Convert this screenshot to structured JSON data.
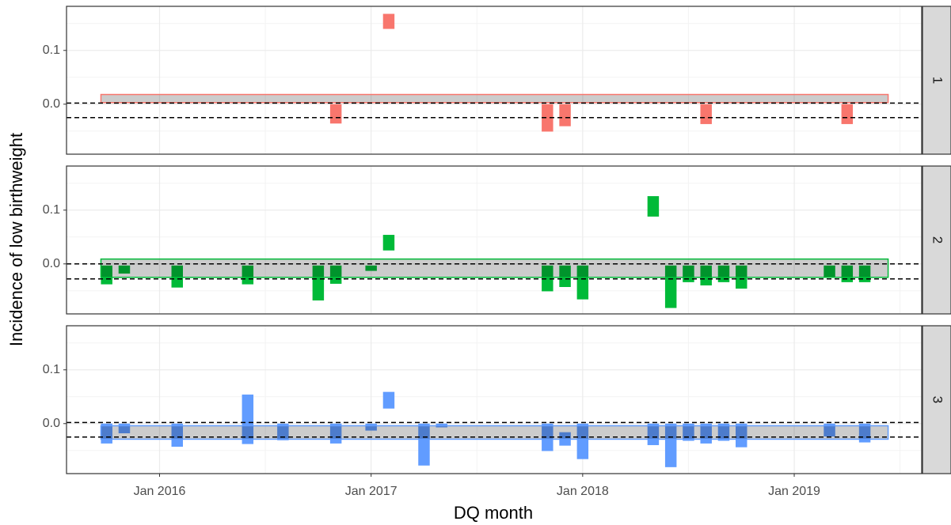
{
  "chart_data": {
    "type": "range_bar",
    "x_label": "DQ month",
    "y_label": "Incidence of low birthweight",
    "xlim": [
      "2015-07-23",
      "2019-08-08"
    ],
    "xticks": [
      {
        "value": "2016-01-01",
        "label": "Jan 2016"
      },
      {
        "value": "2017-01-01",
        "label": "Jan 2017"
      },
      {
        "value": "2018-01-01",
        "label": "Jan 2018"
      },
      {
        "value": "2019-01-01",
        "label": "Jan 2019"
      }
    ],
    "minor_xticks": [
      "2015-07-01",
      "2016-07-01",
      "2017-07-01",
      "2018-07-01",
      "2019-07-01"
    ],
    "ylim": [
      -0.093,
      0.182
    ],
    "yticks": [
      {
        "value": 0,
        "label": "0.0"
      },
      0.1
    ],
    "minor_yticks": [
      -0.05,
      0.05,
      0.15
    ],
    "grid": true,
    "facets": [
      {
        "name": "1",
        "color": "#F8766D",
        "band": {
          "x": [
            "2015-10",
            "2019-06"
          ],
          "y": [
            0.003,
            0.018
          ]
        },
        "hlines": [
          0.002,
          -0.025
        ],
        "x": [
          "2016-11",
          "2017-02",
          "2017-11",
          "2017-12",
          "2018-08",
          "2019-04"
        ],
        "low": [
          -0.036,
          0.14,
          -0.051,
          -0.041,
          -0.037,
          -0.037
        ],
        "high": [
          0.0,
          0.168,
          0.0,
          0.0,
          0.0,
          0.0
        ]
      },
      {
        "name": "2",
        "color": "#00BA38",
        "band": {
          "x": [
            "2015-10",
            "2019-06"
          ],
          "y": [
            -0.025,
            0.009
          ]
        },
        "hlines": [
          0.0,
          -0.028
        ],
        "x": [
          "2015-10",
          "2015-11",
          "2016-02",
          "2016-06",
          "2016-10",
          "2016-11",
          "2017-01",
          "2017-02",
          "2017-11",
          "2017-12",
          "2018-01",
          "2018-05",
          "2018-06",
          "2018-07",
          "2018-08",
          "2018-09",
          "2018-10",
          "2019-03",
          "2019-04",
          "2019-05"
        ],
        "low": [
          -0.038,
          -0.018,
          -0.044,
          -0.038,
          -0.068,
          -0.037,
          -0.013,
          0.025,
          -0.051,
          -0.043,
          -0.066,
          0.088,
          -0.082,
          -0.034,
          -0.04,
          -0.034,
          -0.046,
          -0.026,
          -0.034,
          -0.034
        ],
        "high": [
          -0.003,
          -0.003,
          -0.003,
          -0.003,
          -0.003,
          -0.003,
          -0.003,
          0.054,
          -0.003,
          -0.003,
          -0.003,
          0.126,
          -0.003,
          -0.003,
          -0.003,
          -0.003,
          -0.003,
          -0.003,
          -0.003,
          -0.003
        ]
      },
      {
        "name": "3",
        "color": "#619CFF",
        "band": {
          "x": [
            "2015-10",
            "2019-06"
          ],
          "y": [
            -0.029,
            -0.004
          ]
        },
        "hlines": [
          0.002,
          -0.025
        ],
        "x": [
          "2015-10",
          "2015-11",
          "2016-02",
          "2016-06",
          "2016-08",
          "2016-11",
          "2017-01",
          "2017-02",
          "2017-04",
          "2017-05",
          "2017-11",
          "2017-12",
          "2018-01",
          "2018-05",
          "2018-06",
          "2018-07",
          "2018-08",
          "2018-09",
          "2018-10",
          "2019-03",
          "2019-05"
        ],
        "low": [
          -0.037,
          -0.018,
          -0.043,
          -0.038,
          -0.031,
          -0.037,
          -0.013,
          0.028,
          -0.078,
          -0.007,
          -0.051,
          -0.041,
          -0.066,
          -0.04,
          -0.081,
          -0.032,
          -0.037,
          -0.032,
          -0.044,
          -0.024,
          -0.035
        ],
        "high": [
          0.0,
          0.0,
          0.0,
          0.054,
          0.0,
          0.0,
          0.0,
          0.059,
          0.0,
          0.0,
          0.0,
          -0.016,
          0.0,
          0.0,
          0.0,
          0.0,
          0.0,
          0.0,
          0.0,
          0.0,
          0.0
        ]
      }
    ]
  }
}
